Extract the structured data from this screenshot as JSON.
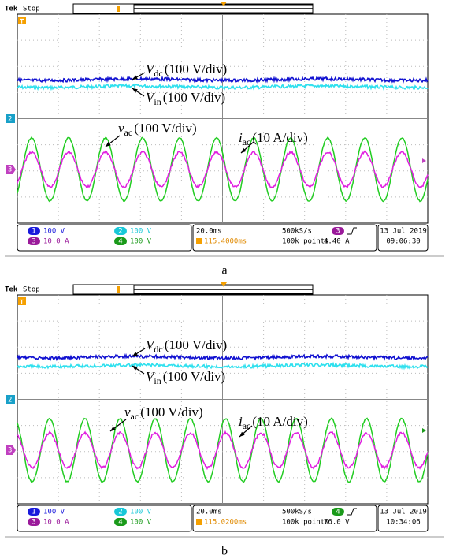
{
  "panels": [
    {
      "label": "a",
      "header": {
        "brand": "Tek",
        "status": "Stop"
      },
      "annotations": [
        {
          "var": "V",
          "sub": "dc",
          "text": "(100 V/div)"
        },
        {
          "var": "V",
          "sub": "in",
          "text": "(100 V/div)"
        },
        {
          "var": "v",
          "sub": "ac",
          "text": "(100 V/div)"
        },
        {
          "var": "i",
          "sub": "ac",
          "text": "(10 A/div)"
        }
      ],
      "channels": [
        {
          "num": "1",
          "scale": "100 V"
        },
        {
          "num": "2",
          "scale": "100 V"
        },
        {
          "num": "3",
          "scale": "10.0 A"
        },
        {
          "num": "4",
          "scale": "100 V"
        }
      ],
      "timebase": {
        "time_div": "20.0ms",
        "trigger_pos": "115.4000ms",
        "sample_rate": "500kS/s",
        "record": "100k points",
        "trigger_channel": "3",
        "trigger_level": "4.40 A"
      },
      "date": "13 Jul  2019",
      "time": "09:06:30"
    },
    {
      "label": "b",
      "header": {
        "brand": "Tek",
        "status": "Stop"
      },
      "annotations": [
        {
          "var": "V",
          "sub": "dc",
          "text": "(100 V/div)"
        },
        {
          "var": "V",
          "sub": "in",
          "text": "(100 V/div)"
        },
        {
          "var": "v",
          "sub": "ac",
          "text": "(100 V/div)"
        },
        {
          "var": "i",
          "sub": "ac",
          "text": "(10 A/div)"
        }
      ],
      "channels": [
        {
          "num": "1",
          "scale": "100 V"
        },
        {
          "num": "2",
          "scale": "100 V"
        },
        {
          "num": "3",
          "scale": "10.0 A"
        },
        {
          "num": "4",
          "scale": "100 V"
        }
      ],
      "timebase": {
        "time_div": "20.0ms",
        "trigger_pos": "115.0200ms",
        "sample_rate": "500kS/s",
        "record": "100k points",
        "trigger_channel": "4",
        "trigger_level": "76.0 V"
      },
      "date": "13 Jul  2019",
      "time": "10:34:06"
    }
  ]
}
